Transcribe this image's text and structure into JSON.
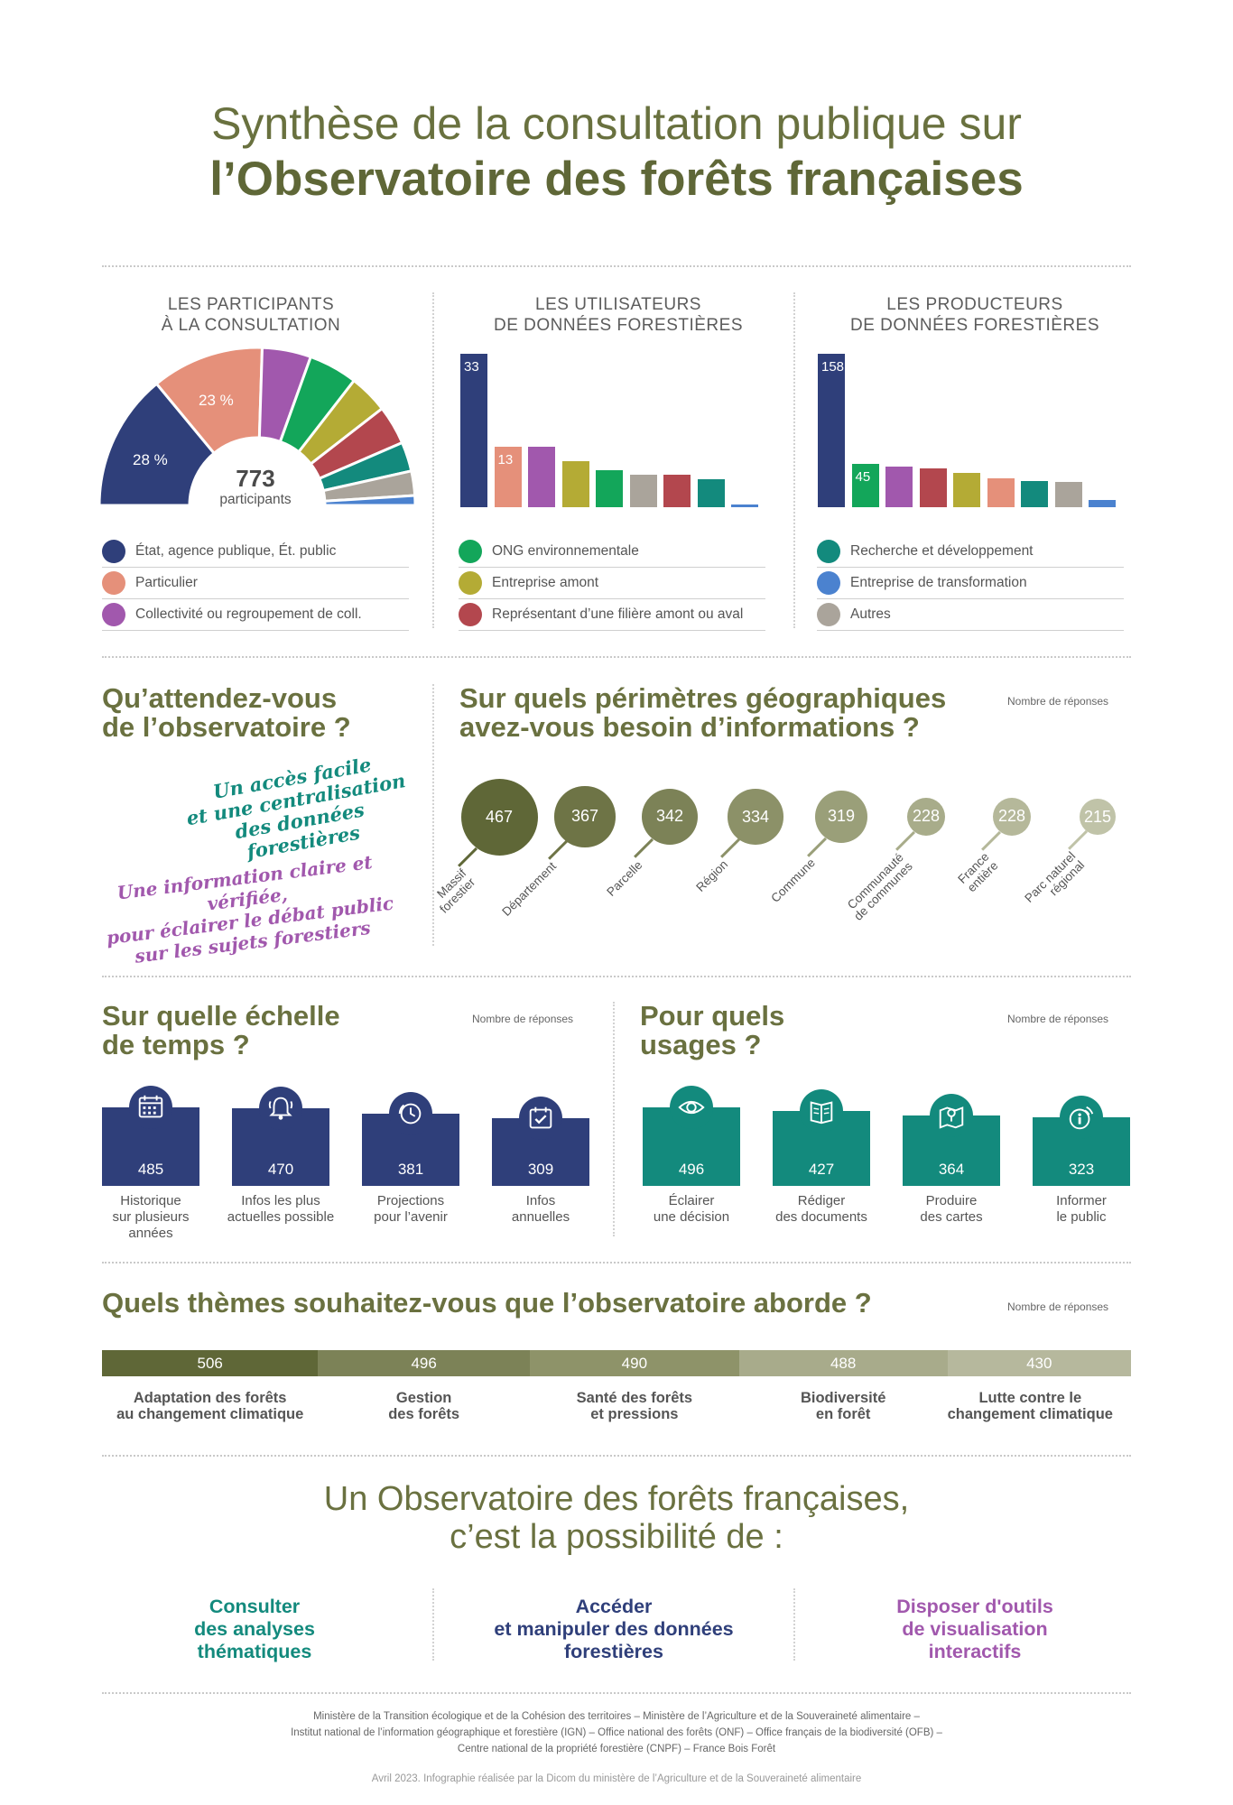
{
  "header": {
    "title_line1": "Synthèse de la consultation publique sur",
    "title_line2": "l’Observatoire des forêts françaises"
  },
  "participants": {
    "heading_line1": "LES PARTICIPANTS",
    "heading_line2": "À LA CONSULTATION",
    "total": "773",
    "total_label": "participants",
    "label_first": "28 %",
    "label_second": "23 %"
  },
  "utilisateurs": {
    "heading_line1": "LES UTILISATEURS",
    "heading_line2": "DE DONNÉES FORESTIÈRES"
  },
  "producteurs": {
    "heading_line1": "LES PRODUCTEURS",
    "heading_line2": "DE DONNÉES FORESTIÈRES"
  },
  "legend": [
    {
      "label": "État, agence publique, Ét. public",
      "color": "#2f3f7a"
    },
    {
      "label": "Particulier",
      "color": "#e5907a"
    },
    {
      "label": "Collectivité ou regroupement de coll.",
      "color": "#a158ad"
    },
    {
      "label": "ONG environnementale",
      "color": "#13a65a"
    },
    {
      "label": "Entreprise amont",
      "color": "#b4ab35"
    },
    {
      "label": "Représentant d’une filière amont ou aval",
      "color": "#b3474e"
    },
    {
      "label": "Recherche et développement",
      "color": "#138a7d"
    },
    {
      "label": "Entreprise de transformation",
      "color": "#4b82cf"
    },
    {
      "label": "Autres",
      "color": "#aaa49b"
    }
  ],
  "attentes": {
    "title_line1": "Qu’attendez-vous",
    "title_line2": "de l’observatoire ?",
    "quote1_l1": "Un accès facile",
    "quote1_l2": "et une centralisation",
    "quote1_l3": "des données forestières",
    "quote2_l1": "Une information claire et vérifiée,",
    "quote2_l2": "pour éclairer le débat public",
    "quote2_l3": "sur les sujets forestiers"
  },
  "geo": {
    "title_line1": "Sur quels périmètres géographiques",
    "title_line2": "avez-vous besoin d’informations ?",
    "note": "Nombre de réponses"
  },
  "temps": {
    "title_line1": "Sur quelle échelle",
    "title_line2": "de temps ?",
    "note": "Nombre de réponses"
  },
  "usages": {
    "title_line1": "Pour quels",
    "title_line2": "usages ?",
    "note": "Nombre de réponses"
  },
  "themes": {
    "title": "Quels thèmes souhaitez-vous que l’observatoire aborde ?",
    "note": "Nombre de réponses"
  },
  "final": {
    "line1": "Un Observatoire des forêts françaises,",
    "line2": "c’est la possibilité de :",
    "p1_l1": "Consulter",
    "p1_l2": "des analyses",
    "p1_l3": "thématiques",
    "p2_l1": "Accéder",
    "p2_l2": "et manipuler des données",
    "p2_l3": "forestières",
    "p3_l1": "Disposer d'outils",
    "p3_l2": "de visualisation",
    "p3_l3": "interactifs"
  },
  "footer": {
    "line1": "Ministère de la Transition écologique et de la Cohésion des territoires – Ministère de l’Agriculture et de la Souveraineté alimentaire –",
    "line2": "Institut national de l’information géographique et forestière (IGN) – Office national des forêts (ONF) – Office français de la biodiversité (OFB) –",
    "line3": "Centre national de la propriété forestière (CNPF) – France Bois Forêt",
    "credit": "Avril 2023. Infographie réalisée par la Dicom du ministère de l’Agriculture et de la Souveraineté alimentaire"
  },
  "chart_data": [
    {
      "type": "pie",
      "title": "LES PARTICIPANTS À LA CONSULTATION",
      "categories": [
        "État, agence publique, Ét. public",
        "Particulier",
        "Collectivité ou regroupement de coll.",
        "ONG environnementale",
        "Entreprise amont",
        "Représentant d’une filière amont ou aval",
        "Recherche et développement",
        "Autres",
        "Entreprise de transformation"
      ],
      "values": [
        28,
        23,
        10,
        10,
        8,
        8,
        6,
        5,
        2
      ],
      "colors": [
        "#2f3f7a",
        "#e5907a",
        "#a158ad",
        "#13a65a",
        "#b4ab35",
        "#b3474e",
        "#138a7d",
        "#aaa49b",
        "#4b82cf"
      ],
      "total": 773
    },
    {
      "type": "bar",
      "title": "LES UTILISATEURS DE DONNÉES FORESTIÈRES",
      "categories": [
        "État, agence publique, Ét. public",
        "Particulier",
        "Collectivité ou regroupement de coll.",
        "Entreprise amont",
        "ONG environnementale",
        "Autres",
        "Représentant d’une filière amont ou aval",
        "Recherche et développement",
        "Entreprise de transformation"
      ],
      "values": [
        33,
        13,
        13,
        10,
        8,
        7,
        7,
        6,
        0.3
      ],
      "colors": [
        "#2f3f7a",
        "#e5907a",
        "#a158ad",
        "#b4ab35",
        "#13a65a",
        "#aaa49b",
        "#b3474e",
        "#138a7d",
        "#4b82cf"
      ],
      "labels": [
        "33",
        "13",
        "",
        "",
        "",
        "",
        "",
        "",
        ""
      ],
      "ylim": [
        0,
        33
      ]
    },
    {
      "type": "bar",
      "title": "LES PRODUCTEURS DE DONNÉES FORESTIÈRES",
      "categories": [
        "État, agence publique, Ét. public",
        "ONG environnementale",
        "Collectivité ou regroupement de coll.",
        "Représentant d’une filière amont ou aval",
        "Entreprise amont",
        "Particulier",
        "Recherche et développement",
        "Autres",
        "Entreprise de transformation"
      ],
      "values": [
        158,
        45,
        42,
        40,
        35,
        30,
        27,
        26,
        7
      ],
      "colors": [
        "#2f3f7a",
        "#13a65a",
        "#a158ad",
        "#b3474e",
        "#b4ab35",
        "#e5907a",
        "#138a7d",
        "#aaa49b",
        "#4b82cf"
      ],
      "labels": [
        "158",
        "45",
        "",
        "",
        "",
        "",
        "",
        "",
        ""
      ],
      "ylim": [
        0,
        158
      ]
    },
    {
      "type": "scatter",
      "title": "Sur quels périmètres géographiques avez-vous besoin d’informations ?",
      "categories": [
        "Massif forestier",
        "Département",
        "Parcelle",
        "Région",
        "Commune",
        "Communauté de communes",
        "France entière",
        "Parc naturel régional"
      ],
      "label_lines": [
        [
          "Massif",
          "forestier"
        ],
        [
          "Département"
        ],
        [
          "Parcelle"
        ],
        [
          "Région"
        ],
        [
          "Commune"
        ],
        [
          "Communauté",
          "de communes"
        ],
        [
          "France",
          "entière"
        ],
        [
          "Parc naturel",
          "régional"
        ]
      ],
      "values": [
        467,
        367,
        342,
        334,
        319,
        228,
        228,
        215
      ],
      "colors": [
        "#5f6737",
        "#6e7446",
        "#7c8257",
        "#8c9168",
        "#9a9f79",
        "#a8ac8a",
        "#b5b89a",
        "#c0c3a8"
      ]
    },
    {
      "type": "bar",
      "title": "Sur quelle échelle de temps ?",
      "categories": [
        "Historique sur plusieurs années",
        "Infos les plus actuelles possible",
        "Projections pour l’avenir",
        "Infos annuelles"
      ],
      "label_lines": [
        [
          "Historique",
          "sur plusieurs",
          "années"
        ],
        [
          "Infos les plus",
          "actuelles possible"
        ],
        [
          "Projections",
          "pour l’avenir"
        ],
        [
          "Infos",
          "annuelles"
        ]
      ],
      "values": [
        485,
        470,
        381,
        309
      ],
      "icons": [
        "calendar-icon",
        "bell-icon",
        "clock-icon",
        "calendar-check-icon"
      ],
      "color": "#2f3f7a"
    },
    {
      "type": "bar",
      "title": "Pour quels usages ?",
      "categories": [
        "Éclairer une décision",
        "Rédiger des documents",
        "Produire des cartes",
        "Informer le public"
      ],
      "label_lines": [
        [
          "Éclairer",
          "une décision"
        ],
        [
          "Rédiger",
          "des documents"
        ],
        [
          "Produire",
          "des cartes"
        ],
        [
          "Informer",
          "le public"
        ]
      ],
      "values": [
        496,
        427,
        364,
        323
      ],
      "icons": [
        "eye-icon",
        "document-icon",
        "map-pin-icon",
        "info-icon"
      ],
      "color": "#138a7d"
    },
    {
      "type": "bar",
      "title": "Quels thèmes souhaitez-vous que l’observatoire aborde ?",
      "categories": [
        "Adaptation des forêts au changement climatique",
        "Gestion des forêts",
        "Santé des forêts et pressions",
        "Biodiversité en forêt",
        "Lutte contre le changement climatique"
      ],
      "label_lines": [
        [
          "Adaptation des forêts",
          "au changement climatique"
        ],
        [
          "Gestion",
          "des forêts"
        ],
        [
          "Santé des forêts",
          "et pressions"
        ],
        [
          "Biodiversité",
          "en forêt"
        ],
        [
          "Lutte contre le",
          "changement climatique"
        ]
      ],
      "values": [
        506,
        496,
        490,
        488,
        430
      ],
      "colors": [
        "#5f6737",
        "#7c8257",
        "#8e9369",
        "#a8ab8b",
        "#b6b89d"
      ]
    }
  ]
}
